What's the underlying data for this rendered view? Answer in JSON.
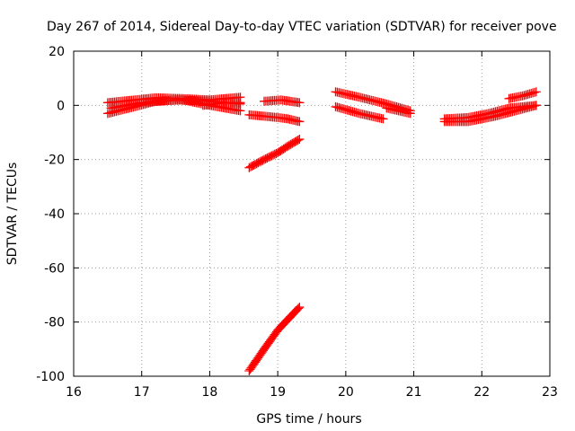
{
  "chart_data": {
    "type": "scatter",
    "title": "Day 267 of 2014, Sidereal Day-to-day VTEC variation (SDTVAR) for receiver pove",
    "xlabel": "GPS time / hours",
    "ylabel": "SDTVAR / TECUs",
    "xlim": [
      16,
      23
    ],
    "ylim": [
      -100,
      20
    ],
    "xticks": [
      16,
      17,
      18,
      19,
      20,
      21,
      22,
      23
    ],
    "yticks": [
      20,
      0,
      -20,
      -40,
      -60,
      -80,
      -100
    ],
    "grid": true,
    "marker": "plus",
    "series": [
      {
        "color": "#ff0000",
        "segments": [
          {
            "x": [
              16.5,
              16.9,
              17.2,
              17.6,
              18.0,
              18.45
            ],
            "y": [
              1.0,
              2.0,
              2.8,
              2.5,
              2.0,
              3.0
            ]
          },
          {
            "x": [
              16.5,
              16.9,
              17.2,
              17.6,
              18.0,
              18.45
            ],
            "y": [
              -3.0,
              -0.5,
              1.5,
              2.0,
              0.0,
              -2.0
            ]
          },
          {
            "x": [
              16.55,
              17.0,
              17.5,
              18.0,
              18.45
            ],
            "y": [
              -1.0,
              1.0,
              2.0,
              1.5,
              0.5
            ]
          },
          {
            "x": [
              17.9,
              18.2,
              18.45
            ],
            "y": [
              0.0,
              1.0,
              1.0
            ]
          },
          {
            "x": [
              18.58,
              18.8,
              19.0,
              19.15,
              19.32
            ],
            "y": [
              -3.5,
              -4.0,
              -4.5,
              -5.0,
              -6.0
            ]
          },
          {
            "x": [
              18.8,
              19.05,
              19.32
            ],
            "y": [
              1.5,
              2.0,
              1.0
            ]
          },
          {
            "x": [
              18.58,
              18.8,
              19.0,
              19.15,
              19.32
            ],
            "y": [
              -23.0,
              -20.0,
              -17.5,
              -15.0,
              -12.5
            ]
          },
          {
            "x": [
              18.58,
              18.8,
              19.0,
              19.15,
              19.32
            ],
            "y": [
              -98.0,
              -90.0,
              -83.0,
              -79.0,
              -74.5
            ]
          },
          {
            "x": [
              19.85,
              20.2,
              20.6,
              20.95
            ],
            "y": [
              5.0,
              3.0,
              0.5,
              -2.0
            ]
          },
          {
            "x": [
              19.85,
              20.2,
              20.55
            ],
            "y": [
              -0.5,
              -3.0,
              -5.0
            ]
          },
          {
            "x": [
              20.6,
              20.95
            ],
            "y": [
              -1.0,
              -3.0
            ]
          },
          {
            "x": [
              21.45,
              21.8,
              22.2,
              22.5,
              22.8
            ],
            "y": [
              -6.0,
              -6.0,
              -4.0,
              -2.0,
              0.0
            ]
          },
          {
            "x": [
              21.45,
              21.8,
              22.1,
              22.4,
              22.8
            ],
            "y": [
              -5.0,
              -4.5,
              -3.0,
              -1.0,
              0.0
            ]
          },
          {
            "x": [
              22.4,
              22.6,
              22.8
            ],
            "y": [
              2.5,
              3.5,
              5.0
            ]
          }
        ]
      }
    ]
  }
}
